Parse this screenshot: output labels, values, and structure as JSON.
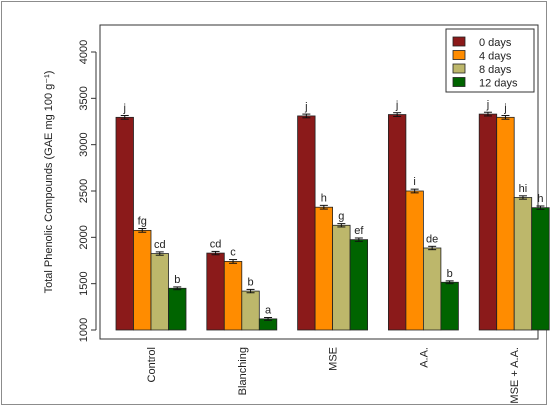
{
  "chart_data": {
    "type": "bar",
    "title": "",
    "xlabel": "",
    "ylabel": "Total Phenolic Compounds (GAE mg 100 g⁻¹)",
    "ylim": [
      1000,
      4000
    ],
    "yticks": [
      1000,
      1500,
      2000,
      2500,
      3000,
      3500,
      4000
    ],
    "grid": false,
    "legend_position": "top-right",
    "categories": [
      "Control",
      "Blanching",
      "MSE",
      "A.A.",
      "MSE + A.A."
    ],
    "series": [
      {
        "name": "0 days",
        "color": "#8b1a1a",
        "values": [
          3295,
          1830,
          3310,
          3325,
          3330
        ],
        "errors": [
          20,
          18,
          20,
          20,
          20
        ],
        "labels": [
          "j",
          "cd",
          "j",
          "j",
          "j"
        ]
      },
      {
        "name": "4 days",
        "color": "#ff8c00",
        "values": [
          2075,
          1740,
          2325,
          2500,
          3295
        ],
        "errors": [
          20,
          20,
          20,
          20,
          20
        ],
        "labels": [
          "fg",
          "c",
          "h",
          "i",
          "j"
        ]
      },
      {
        "name": "8 days",
        "color": "#bdb76b",
        "values": [
          1825,
          1420,
          2130,
          1885,
          2430
        ],
        "errors": [
          18,
          18,
          18,
          18,
          18
        ],
        "labels": [
          "cd",
          "b",
          "g",
          "de",
          "hi"
        ]
      },
      {
        "name": "12 days",
        "color": "#006400",
        "values": [
          1450,
          1120,
          1975,
          1515,
          2320
        ],
        "errors": [
          15,
          15,
          18,
          15,
          18
        ],
        "labels": [
          "b",
          "a",
          "ef",
          "b",
          "h"
        ]
      }
    ]
  }
}
